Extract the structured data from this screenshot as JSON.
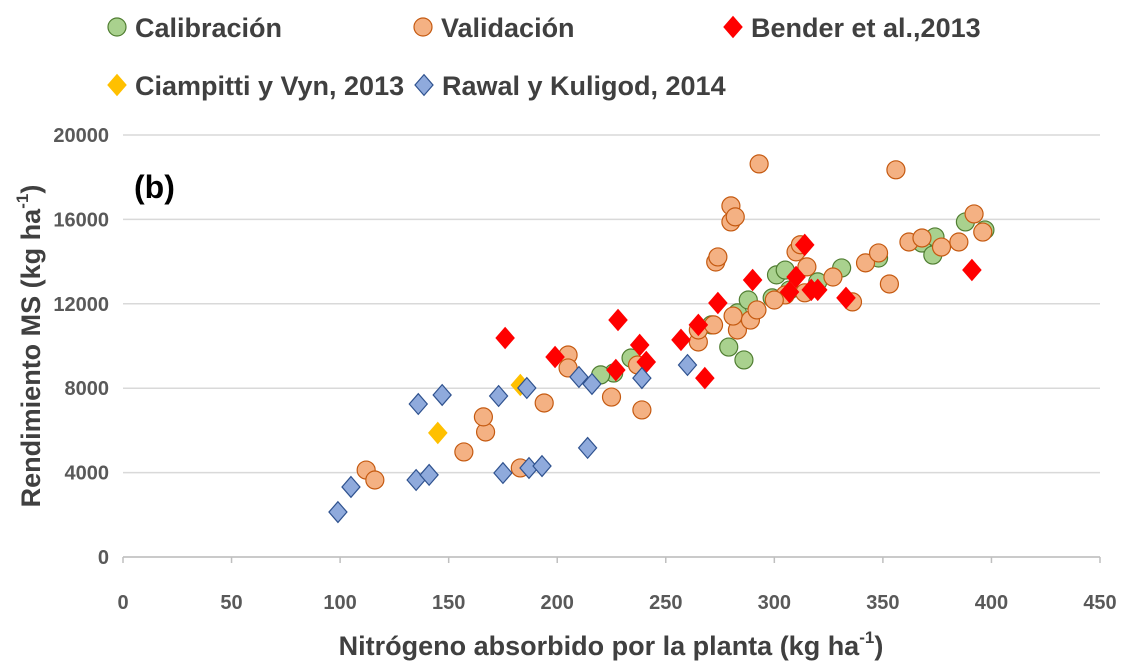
{
  "chart_data": {
    "type": "scatter",
    "annotation": "(b)",
    "xlabel": [
      "Nitrógeno absorbido por la planta (kg ha",
      "-1",
      ")"
    ],
    "ylabel": [
      "Rendimiento MS (kg ha",
      "-1",
      ")"
    ],
    "xlim": [
      0,
      450
    ],
    "xticks": [
      0,
      50,
      100,
      150,
      200,
      250,
      300,
      350,
      400,
      450
    ],
    "ylim": [
      0,
      20000
    ],
    "yticks": [
      0,
      4000,
      8000,
      12000,
      16000,
      20000
    ],
    "grid": true,
    "series": [
      {
        "name": "Calibración",
        "color": "#a9d18e",
        "marker": "circle",
        "x": [
          226,
          234,
          279,
          286,
          271,
          283,
          288,
          299,
          301,
          305,
          307,
          320,
          331,
          348,
          368,
          373,
          374,
          388,
          397,
          220
        ],
        "values": [
          8720,
          9430,
          9950,
          9340,
          11000,
          11570,
          12180,
          12280,
          13370,
          13600,
          12650,
          13040,
          13700,
          14170,
          14880,
          14310,
          15170,
          15880,
          15500,
          8630
        ]
      },
      {
        "name": "Validación",
        "color": "#f4b183",
        "marker": "circle",
        "x": [
          112,
          116,
          157,
          167,
          166,
          183,
          194,
          205,
          205,
          225,
          239,
          237,
          265,
          265,
          272,
          273,
          274,
          280,
          280,
          282,
          283,
          281,
          289,
          292,
          293,
          305,
          315,
          310,
          312,
          314,
          327,
          336,
          342,
          348,
          353,
          356,
          362,
          368,
          377,
          385,
          392,
          396,
          300
        ],
        "values": [
          4120,
          3650,
          4980,
          5925,
          6640,
          4220,
          7300,
          9575,
          8960,
          7580,
          6970,
          9100,
          10190,
          10760,
          11000,
          13980,
          14220,
          15880,
          16640,
          16120,
          10760,
          11420,
          11230,
          11710,
          18630,
          12420,
          13750,
          14460,
          14800,
          12520,
          13270,
          12090,
          13940,
          14410,
          12940,
          18350,
          14930,
          15120,
          14690,
          14930,
          16260,
          15400,
          12180
        ]
      },
      {
        "name": "Bender et al.,2013",
        "color": "#ff0000",
        "marker": "diamond",
        "x": [
          176,
          199,
          228,
          227,
          238,
          241,
          257,
          265,
          268,
          274,
          290,
          310,
          314,
          307,
          317,
          320,
          333,
          391
        ],
        "values": [
          10380,
          9480,
          11230,
          8860,
          10050,
          9240,
          10290,
          11000,
          8480,
          12040,
          13130,
          13270,
          14790,
          12560,
          12660,
          12660,
          12280,
          13600
        ]
      },
      {
        "name": "Ciampitti y Vyn, 2013",
        "color": "#ffc000",
        "marker": "diamond",
        "x": [
          145,
          183
        ],
        "values": [
          5880,
          8150
        ]
      },
      {
        "name": "Rawal y Kuligod, 2014",
        "color": "#8faadc",
        "marker": "diamond",
        "x": [
          99,
          105,
          136,
          135,
          141,
          147,
          173,
          175,
          186,
          187,
          193,
          210,
          214,
          216,
          239,
          260
        ],
        "values": [
          2130,
          3320,
          7250,
          3650,
          3890,
          7680,
          7630,
          3980,
          8010,
          4220,
          4310,
          8530,
          5170,
          8200,
          8480,
          9100
        ]
      }
    ]
  }
}
